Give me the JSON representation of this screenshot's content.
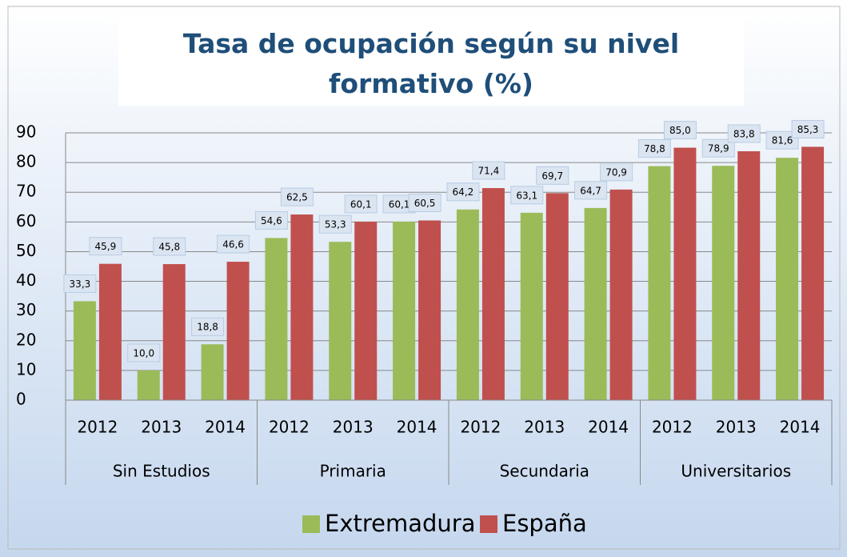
{
  "chart_data": {
    "type": "bar",
    "title": "Tasa de ocupación según su nivel formativo (%)",
    "categories": [
      "2012",
      "2013",
      "2014",
      "2012",
      "2013",
      "2014",
      "2012",
      "2013",
      "2014",
      "2012",
      "2013",
      "2014"
    ],
    "groups": [
      "Sin Estudios",
      "Primaria",
      "Secundaria",
      "Universitarios"
    ],
    "series": [
      {
        "name": "Extremadura",
        "color": "#9bbb59",
        "values": [
          33.3,
          10.0,
          18.8,
          54.6,
          53.3,
          60.1,
          64.2,
          63.1,
          64.7,
          78.8,
          78.9,
          81.6
        ],
        "value_labels": [
          "33,3",
          "10,0",
          "18,8",
          "54,6",
          "53,3",
          "60,1",
          "64,2",
          "63,1",
          "64,7",
          "78,8",
          "78,9",
          "81,6"
        ]
      },
      {
        "name": "España",
        "color": "#c0504d",
        "values": [
          45.9,
          45.8,
          46.6,
          62.5,
          60.1,
          60.5,
          71.4,
          69.7,
          70.9,
          85.0,
          83.8,
          85.3
        ],
        "value_labels": [
          "45,9",
          "45,8",
          "46,6",
          "62,5",
          "60,1",
          "60,5",
          "71,4",
          "69,7",
          "70,9",
          "85,0",
          "83,8",
          "85,3"
        ]
      }
    ],
    "ylim": [
      0,
      90
    ],
    "yticks": [
      0,
      10,
      20,
      30,
      40,
      50,
      60,
      70,
      80,
      90
    ],
    "grid": true,
    "legend": "bottom"
  }
}
